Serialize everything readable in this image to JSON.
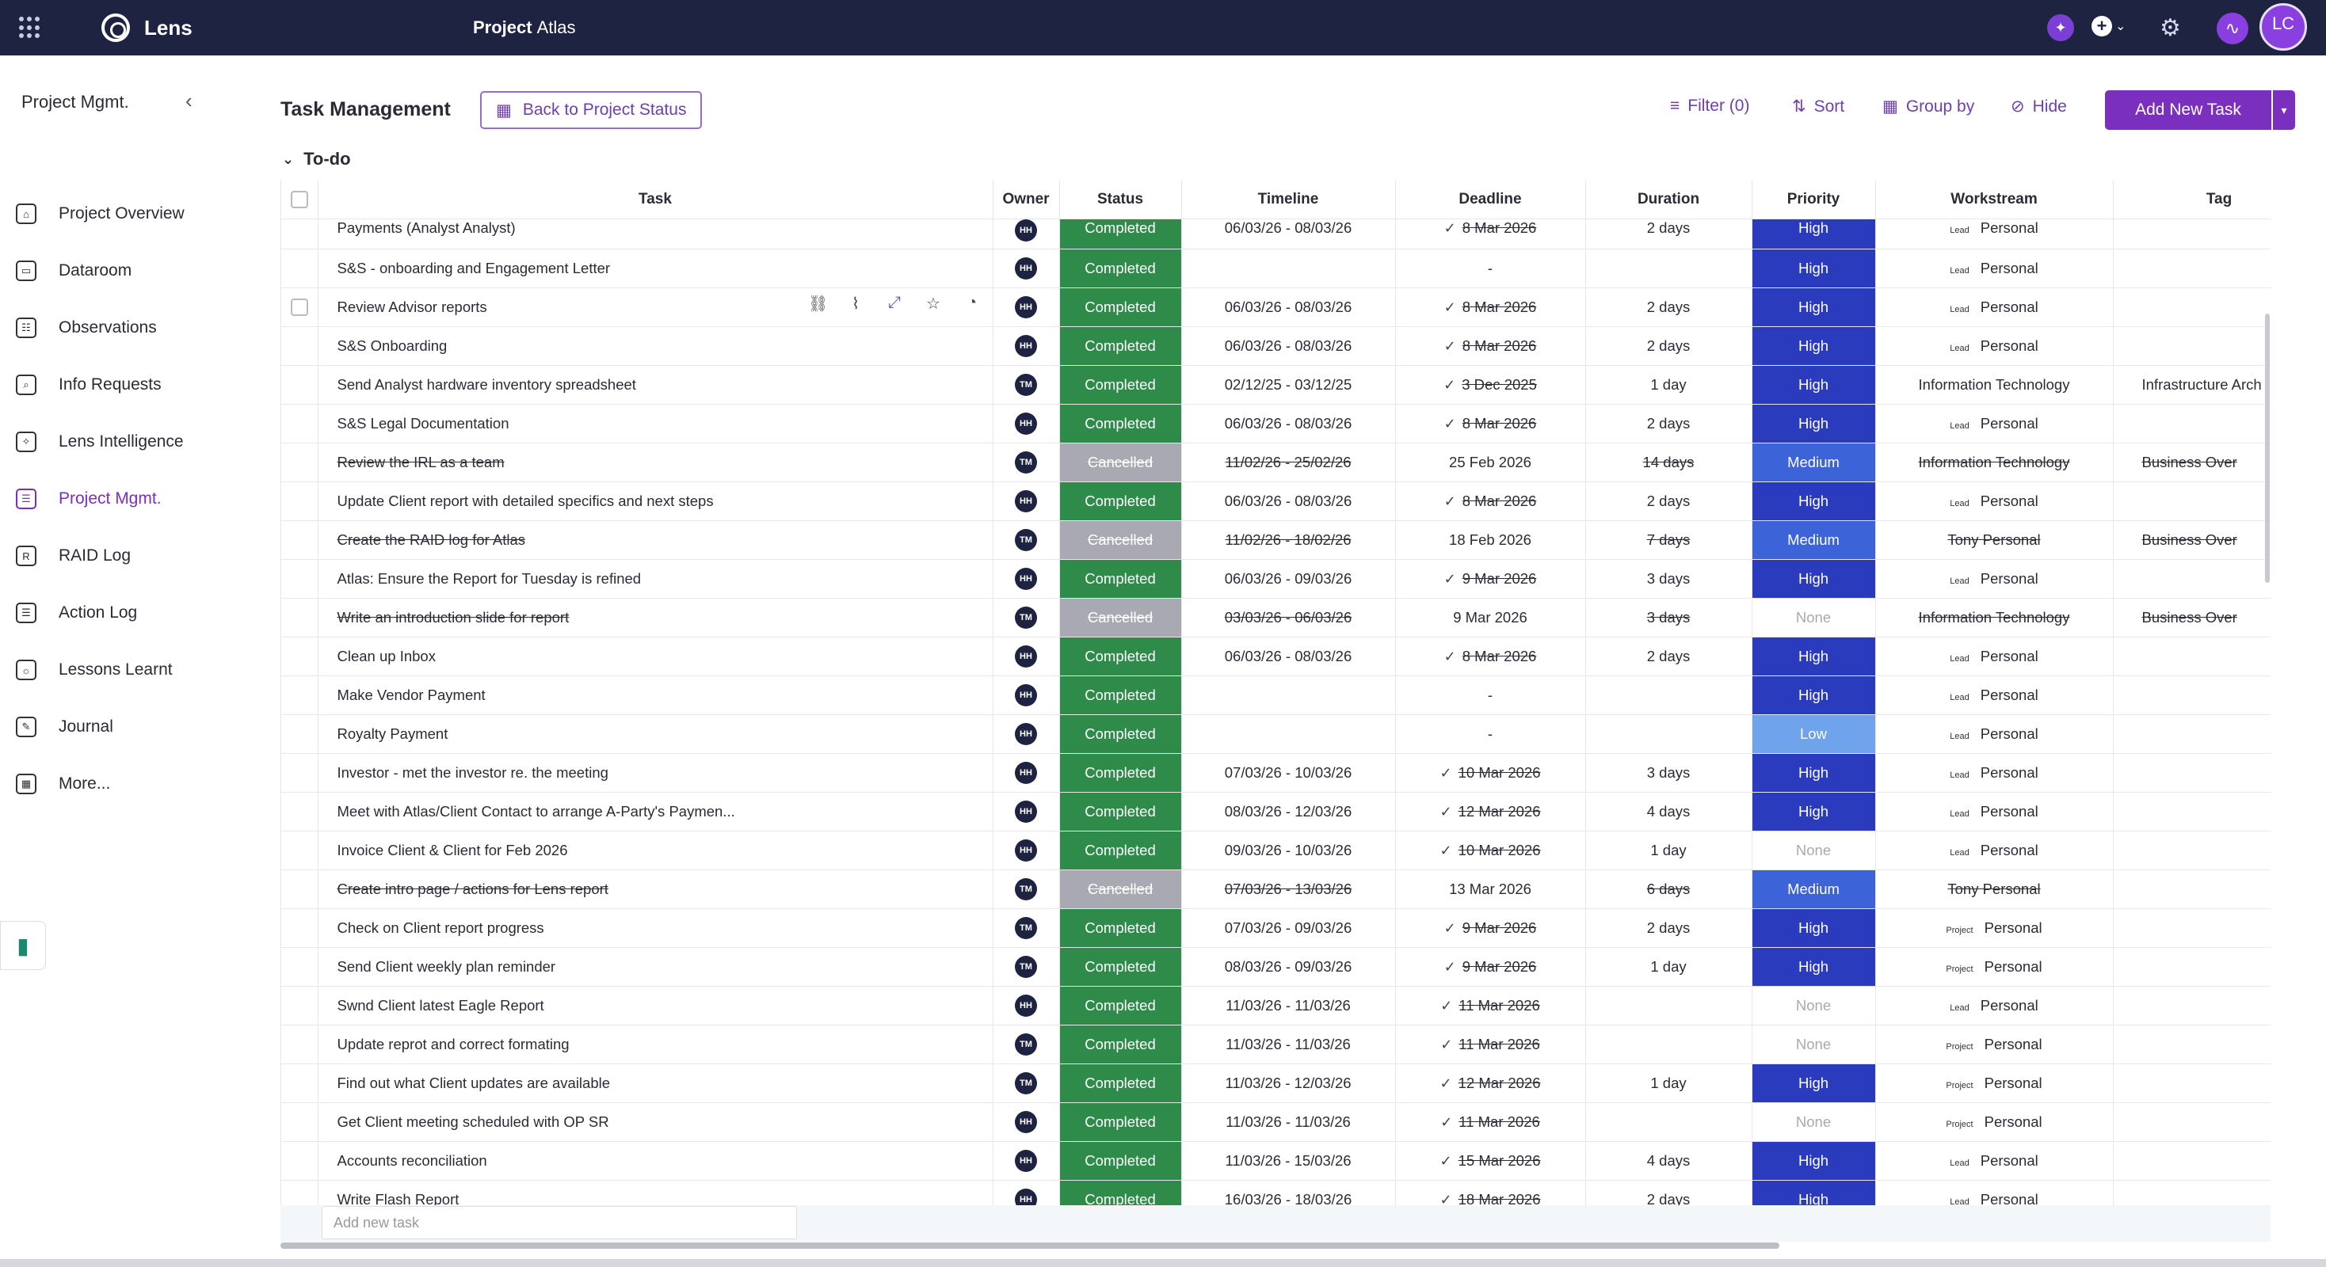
{
  "topbar": {
    "app_name": "Lens",
    "project_label": "Project",
    "project_name": "Atlas",
    "user_initials": "LC"
  },
  "sidebar": {
    "heading": "Project Mgmt.",
    "items": [
      {
        "label": "Project Overview",
        "icon": "home-icon"
      },
      {
        "label": "Dataroom",
        "icon": "dataroom-icon"
      },
      {
        "label": "Observations",
        "icon": "observations-icon"
      },
      {
        "label": "Info Requests",
        "icon": "info-requests-icon"
      },
      {
        "label": "Lens Intelligence",
        "icon": "sparkle-icon"
      },
      {
        "label": "Project Mgmt.",
        "icon": "project-mgmt-icon",
        "active": true
      },
      {
        "label": "RAID Log",
        "icon": "raid-icon"
      },
      {
        "label": "Action Log",
        "icon": "action-log-icon"
      },
      {
        "label": "Lessons Learnt",
        "icon": "lightbulb-icon"
      },
      {
        "label": "Journal",
        "icon": "journal-icon"
      },
      {
        "label": "More...",
        "icon": "more-icon"
      }
    ]
  },
  "page": {
    "title": "Task Management",
    "back_button": "Back to Project Status",
    "filter_label": "Filter (0)",
    "sort_label": "Sort",
    "group_by_label": "Group by",
    "hide_label": "Hide",
    "add_task_label": "Add New Task",
    "group_name": "To-do",
    "add_row_placeholder": "Add new task"
  },
  "table": {
    "columns": [
      "Task",
      "Owner",
      "Status",
      "Timeline",
      "Deadline",
      "Duration",
      "Priority",
      "Workstream",
      "Tag"
    ],
    "rows": [
      {
        "task": "Payments  (Analyst Analyst)",
        "owner": "HH",
        "status": "Completed",
        "timeline": "06/03/26 - 08/03/26",
        "deadline": "8 Mar 2026",
        "done": true,
        "duration": "2 days",
        "priority": "High",
        "ws_badge": "Lead",
        "workstream": "Personal",
        "tag": ""
      },
      {
        "task": "S&S - onboarding and Engagement Letter",
        "owner": "HH",
        "status": "Completed",
        "timeline": "",
        "deadline": "-",
        "done": false,
        "duration": "",
        "priority": "High",
        "ws_badge": "Lead",
        "workstream": "Personal",
        "tag": ""
      },
      {
        "task": "Review  Advisor reports",
        "owner": "HH",
        "status": "Completed",
        "timeline": "06/03/26 - 08/03/26",
        "deadline": "8 Mar 2026",
        "done": true,
        "duration": "2 days",
        "priority": "High",
        "ws_badge": "Lead",
        "workstream": "Personal",
        "tag": ""
      },
      {
        "task": "S&S Onboarding",
        "owner": "HH",
        "status": "Completed",
        "timeline": "06/03/26 - 08/03/26",
        "deadline": "8 Mar 2026",
        "done": true,
        "duration": "2 days",
        "priority": "High",
        "ws_badge": "Lead",
        "workstream": "Personal",
        "tag": ""
      },
      {
        "task": "Send  Analyst hardware inventory spreadsheet",
        "owner": "TM",
        "status": "Completed",
        "timeline": "02/12/25 - 03/12/25",
        "deadline": "3 Dec 2025",
        "done": true,
        "duration": "1 day",
        "priority": "High",
        "ws_badge": "",
        "workstream": "Information Technology",
        "tag": "Infrastructure Arch"
      },
      {
        "task": "S&S Legal Documentation",
        "owner": "HH",
        "status": "Completed",
        "timeline": "06/03/26 - 08/03/26",
        "deadline": "8 Mar 2026",
        "done": true,
        "duration": "2 days",
        "priority": "High",
        "ws_badge": "Lead",
        "workstream": "Personal",
        "tag": ""
      },
      {
        "task": "Review the IRL as a team",
        "owner": "TM",
        "status": "Cancelled",
        "timeline": "11/02/26 - 25/02/26",
        "deadline": "25 Feb 2026",
        "done": false,
        "duration": "14 days",
        "priority": "Medium",
        "ws_badge": "",
        "workstream": "Information Technology",
        "tag": "Business Over"
      },
      {
        "task": "Update  Client report with detailed specifics and next steps",
        "owner": "HH",
        "status": "Completed",
        "timeline": "06/03/26 - 08/03/26",
        "deadline": "8 Mar 2026",
        "done": true,
        "duration": "2 days",
        "priority": "High",
        "ws_badge": "Lead",
        "workstream": "Personal",
        "tag": ""
      },
      {
        "task": "Create the RAID log for  Atlas",
        "owner": "TM",
        "status": "Cancelled",
        "timeline": "11/02/26 - 18/02/26",
        "deadline": "18 Feb 2026",
        "done": false,
        "duration": "7 days",
        "priority": "Medium",
        "ws_badge": "",
        "workstream": "Tony Personal",
        "tag": "Business Over"
      },
      {
        "task": "Atlas:   Ensure the Report for Tuesday is refined",
        "owner": "HH",
        "status": "Completed",
        "timeline": "06/03/26 - 09/03/26",
        "deadline": "9 Mar 2026",
        "done": true,
        "duration": "3 days",
        "priority": "High",
        "ws_badge": "Lead",
        "workstream": "Personal",
        "tag": ""
      },
      {
        "task": "Write an introduction slide for report",
        "owner": "TM",
        "status": "Cancelled",
        "timeline": "03/03/26 - 06/03/26",
        "deadline": "9 Mar 2026",
        "done": false,
        "duration": "3 days",
        "priority": "None",
        "ws_badge": "",
        "workstream": "Information Technology",
        "tag": "Business Over"
      },
      {
        "task": "Clean up Inbox",
        "owner": "HH",
        "status": "Completed",
        "timeline": "06/03/26 - 08/03/26",
        "deadline": "8 Mar 2026",
        "done": true,
        "duration": "2 days",
        "priority": "High",
        "ws_badge": "Lead",
        "workstream": "Personal",
        "tag": ""
      },
      {
        "task": "Make  Vendor   Payment",
        "owner": "HH",
        "status": "Completed",
        "timeline": "",
        "deadline": "-",
        "done": false,
        "duration": "",
        "priority": "High",
        "ws_badge": "Lead",
        "workstream": "Personal",
        "tag": ""
      },
      {
        "task": "Royalty Payment",
        "owner": "HH",
        "status": "Completed",
        "timeline": "",
        "deadline": "-",
        "done": false,
        "duration": "",
        "priority": "Low",
        "ws_badge": "Lead",
        "workstream": "Personal",
        "tag": ""
      },
      {
        "task": "Investor   - met the investor re. the meeting",
        "owner": "HH",
        "status": "Completed",
        "timeline": "07/03/26 - 10/03/26",
        "deadline": "10 Mar 2026",
        "done": true,
        "duration": "3 days",
        "priority": "High",
        "ws_badge": "Lead",
        "workstream": "Personal",
        "tag": ""
      },
      {
        "task": "Meet with  Atlas/Client   Contact   to arrange  A-Party's   Paymen...",
        "owner": "HH",
        "status": "Completed",
        "timeline": "08/03/26 - 12/03/26",
        "deadline": "12 Mar 2026",
        "done": true,
        "duration": "4 days",
        "priority": "High",
        "ws_badge": "Lead",
        "workstream": "Personal",
        "tag": ""
      },
      {
        "task": "Invoice  Client &  Client   for Feb 2026",
        "owner": "HH",
        "status": "Completed",
        "timeline": "09/03/26 - 10/03/26",
        "deadline": "10 Mar 2026",
        "done": true,
        "duration": "1 day",
        "priority": "None",
        "ws_badge": "Lead",
        "workstream": "Personal",
        "tag": ""
      },
      {
        "task": "Create intro page / actions for Lens report",
        "owner": "TM",
        "status": "Cancelled",
        "timeline": "07/03/26 - 13/03/26",
        "deadline": "13 Mar 2026",
        "done": false,
        "duration": "6 days",
        "priority": "Medium",
        "ws_badge": "",
        "workstream": "Tony Personal",
        "tag": ""
      },
      {
        "task": "Check on  Client   report progress",
        "owner": "TM",
        "status": "Completed",
        "timeline": "07/03/26 - 09/03/26",
        "deadline": "9 Mar 2026",
        "done": true,
        "duration": "2 days",
        "priority": "High",
        "ws_badge": "Project",
        "workstream": "Personal",
        "tag": ""
      },
      {
        "task": "Send  Client  weekly plan reminder",
        "owner": "TM",
        "status": "Completed",
        "timeline": "08/03/26 - 09/03/26",
        "deadline": "9 Mar 2026",
        "done": true,
        "duration": "1 day",
        "priority": "High",
        "ws_badge": "Project",
        "workstream": "Personal",
        "tag": ""
      },
      {
        "task": "Swnd  Client latest Eagle Report",
        "owner": "HH",
        "status": "Completed",
        "timeline": "11/03/26 - 11/03/26",
        "deadline": "11 Mar 2026",
        "done": true,
        "duration": "",
        "priority": "None",
        "ws_badge": "Lead",
        "workstream": "Personal",
        "tag": ""
      },
      {
        "task": "Update reprot and correct formating",
        "owner": "TM",
        "status": "Completed",
        "timeline": "11/03/26 - 11/03/26",
        "deadline": "11 Mar 2026",
        "done": true,
        "duration": "",
        "priority": "None",
        "ws_badge": "Project",
        "workstream": "Personal",
        "tag": ""
      },
      {
        "task": "Find out what  Client   updates are available",
        "owner": "TM",
        "status": "Completed",
        "timeline": "11/03/26 - 12/03/26",
        "deadline": "12 Mar 2026",
        "done": true,
        "duration": "1 day",
        "priority": "High",
        "ws_badge": "Project",
        "workstream": "Personal",
        "tag": ""
      },
      {
        "task": "Get  Client   meeting scheduled with OP SR",
        "owner": "HH",
        "status": "Completed",
        "timeline": "11/03/26 - 11/03/26",
        "deadline": "11 Mar 2026",
        "done": true,
        "duration": "",
        "priority": "None",
        "ws_badge": "Project",
        "workstream": "Personal",
        "tag": ""
      },
      {
        "task": "Accounts reconciliation",
        "owner": "HH",
        "status": "Completed",
        "timeline": "11/03/26 - 15/03/26",
        "deadline": "15 Mar 2026",
        "done": true,
        "duration": "4 days",
        "priority": "High",
        "ws_badge": "Lead",
        "workstream": "Personal",
        "tag": ""
      },
      {
        "task": "Write Flash Report",
        "owner": "HH",
        "status": "Completed",
        "timeline": "16/03/26 - 18/03/26",
        "deadline": "18 Mar 2026",
        "done": true,
        "duration": "2 days",
        "priority": "High",
        "ws_badge": "Lead",
        "workstream": "Personal",
        "tag": ""
      }
    ]
  },
  "colors": {
    "topbar": "#1e2342",
    "accent": "#7b2fbf",
    "completed": "#2e8b4a",
    "cancelled": "#a9a9b3",
    "priority_high": "#2a3bbd",
    "priority_medium": "#3d63d9",
    "priority_low": "#6fa4ec"
  }
}
